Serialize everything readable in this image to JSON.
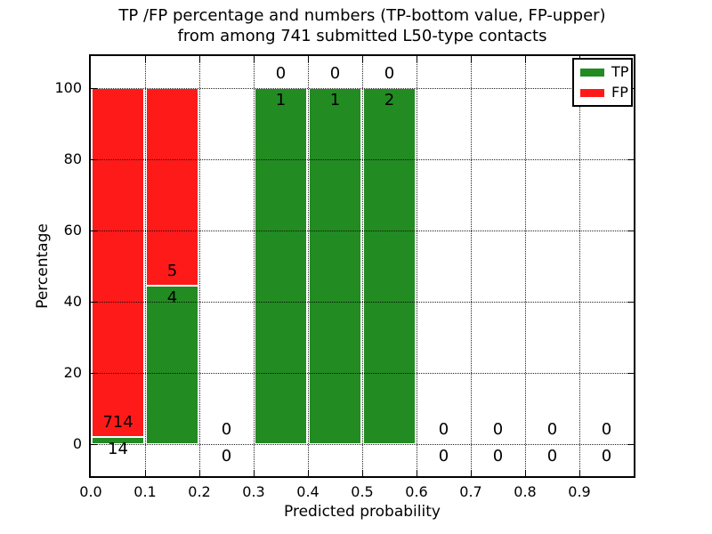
{
  "header": {
    "line1": "TP /FP percentage and numbers (TP-bottom value, FP-upper)",
    "line2": "from among 741 submitted L50-type contacts"
  },
  "chart_data": {
    "type": "bar",
    "stacked": true,
    "title": "TP /FP percentage and numbers (TP-bottom value, FP-upper) from among 741 submitted L50-type contacts",
    "xlabel": "Predicted probability",
    "ylabel": "Percentage",
    "xlim": [
      0,
      1.0
    ],
    "ylim": [
      -9,
      109
    ],
    "x_tick_labels": [
      "0.0",
      "0.1",
      "0.2",
      "0.3",
      "0.4",
      "0.5",
      "0.6",
      "0.7",
      "0.8",
      "0.9"
    ],
    "y_ticks": [
      0,
      20,
      40,
      60,
      80,
      100
    ],
    "grid": "dotted",
    "total_contacts": 741,
    "series": [
      {
        "name": "TP",
        "color": "#228B22"
      },
      {
        "name": "FP",
        "color": "#FF1A1A"
      }
    ],
    "bins": [
      {
        "x_range": [
          0.0,
          0.1
        ],
        "tp_count": 14,
        "fp_count": 714,
        "tp_pct": 1.92,
        "fp_pct": 98.08
      },
      {
        "x_range": [
          0.1,
          0.2
        ],
        "tp_count": 4,
        "fp_count": 5,
        "tp_pct": 44.44,
        "fp_pct": 55.56
      },
      {
        "x_range": [
          0.2,
          0.3
        ],
        "tp_count": 0,
        "fp_count": 0,
        "tp_pct": 0,
        "fp_pct": 0
      },
      {
        "x_range": [
          0.3,
          0.4
        ],
        "tp_count": 1,
        "fp_count": 0,
        "tp_pct": 100,
        "fp_pct": 0
      },
      {
        "x_range": [
          0.4,
          0.5
        ],
        "tp_count": 1,
        "fp_count": 0,
        "tp_pct": 100,
        "fp_pct": 0
      },
      {
        "x_range": [
          0.5,
          0.6
        ],
        "tp_count": 2,
        "fp_count": 0,
        "tp_pct": 100,
        "fp_pct": 0
      },
      {
        "x_range": [
          0.6,
          0.7
        ],
        "tp_count": 0,
        "fp_count": 0,
        "tp_pct": 0,
        "fp_pct": 0
      },
      {
        "x_range": [
          0.7,
          0.8
        ],
        "tp_count": 0,
        "fp_count": 0,
        "tp_pct": 0,
        "fp_pct": 0
      },
      {
        "x_range": [
          0.8,
          0.9
        ],
        "tp_count": 0,
        "fp_count": 0,
        "tp_pct": 0,
        "fp_pct": 0
      },
      {
        "x_range": [
          0.9,
          1.0
        ],
        "tp_count": 0,
        "fp_count": 0,
        "tp_pct": 0,
        "fp_pct": 0
      }
    ],
    "legend": {
      "position": "upper right",
      "entries": [
        {
          "label": "TP",
          "color": "#228B22"
        },
        {
          "label": "FP",
          "color": "#FF1A1A"
        }
      ]
    },
    "annotation_rule": {
      "fp_label_offset_pct": 4,
      "tp_label_offset_pct": -3.5
    },
    "colors": {
      "tp": "#228B22",
      "fp": "#FF1A1A",
      "grid": "#000000",
      "spine": "#000000",
      "background": "#FFFFFF"
    }
  }
}
